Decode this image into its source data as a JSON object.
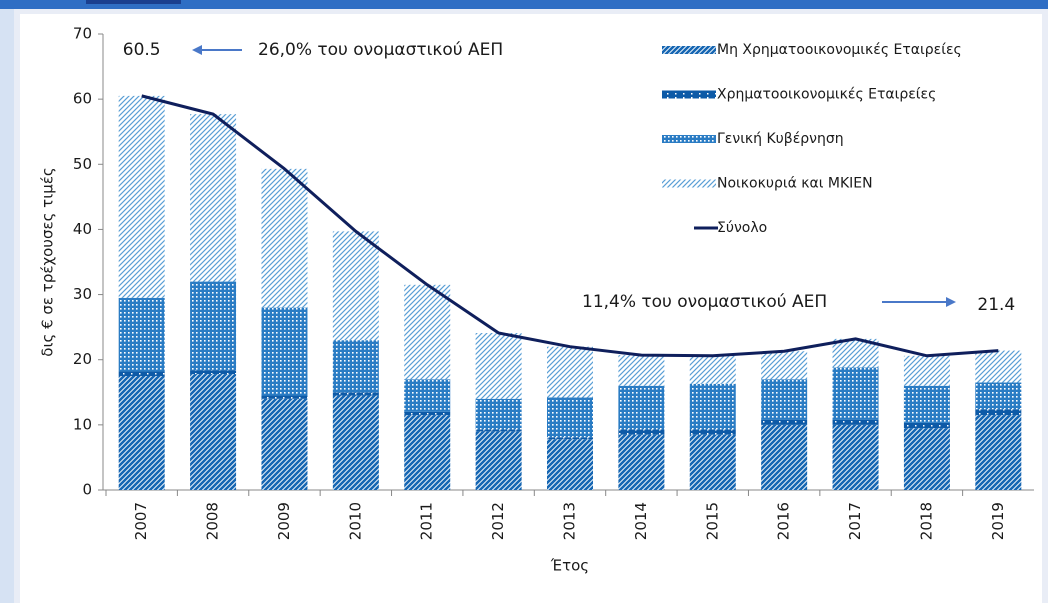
{
  "chart_data": {
    "type": "bar",
    "ylabel": "δις € σε τρέχουσες τιμές",
    "xlabel": "Έτος",
    "categories": [
      "2007",
      "2008",
      "2009",
      "2010",
      "2011",
      "2012",
      "2013",
      "2014",
      "2015",
      "2016",
      "2017",
      "2018",
      "2019"
    ],
    "series": [
      {
        "name": "Μη Χρηματοοικονομικές Εταιρείες",
        "color": "#1767b3",
        "values": [
          17.5,
          17.8,
          14,
          14.5,
          11.5,
          9,
          7.8,
          8.5,
          8.5,
          10,
          10,
          9.5,
          11.5
        ]
      },
      {
        "name": "Χρηματοοικονομικές Εταιρείες",
        "color": "#0d5aa7",
        "values": [
          0.7,
          0.6,
          0.5,
          0.5,
          0.5,
          0.3,
          0.3,
          0.8,
          0.8,
          0.8,
          0.8,
          0.8,
          0.9
        ]
      },
      {
        "name": "Γενική Κυβέρνηση",
        "color": "#2a7cc4",
        "values": [
          11.3,
          13.6,
          13.5,
          8,
          5,
          4.7,
          6.1,
          6.7,
          7,
          6.2,
          8,
          5.7,
          4.1
        ]
      },
      {
        "name": "Νοικοκυριά και ΜΚΙΕΝ",
        "color": "#5a9fd6",
        "values": [
          31,
          25.7,
          21.3,
          16.7,
          14.5,
          10.1,
          7.8,
          4.7,
          4.3,
          4.3,
          4.4,
          4.6,
          4.9
        ]
      },
      {
        "name": "Σύνολο",
        "type": "line",
        "color": "#0f1f5c",
        "values": [
          60.5,
          57.7,
          49.3,
          39.7,
          31.5,
          24.1,
          22,
          20.7,
          20.6,
          21.3,
          23.2,
          20.6,
          21.4
        ]
      }
    ],
    "annotations": [
      "26,0% του ονομαστικού ΑΕΠ",
      "11,4% του ονομαστικού ΑΕΠ"
    ],
    "ylim": [
      0,
      70
    ],
    "yticks": [
      0,
      10,
      20,
      30,
      40,
      50,
      60,
      70
    ],
    "grid": false
  }
}
